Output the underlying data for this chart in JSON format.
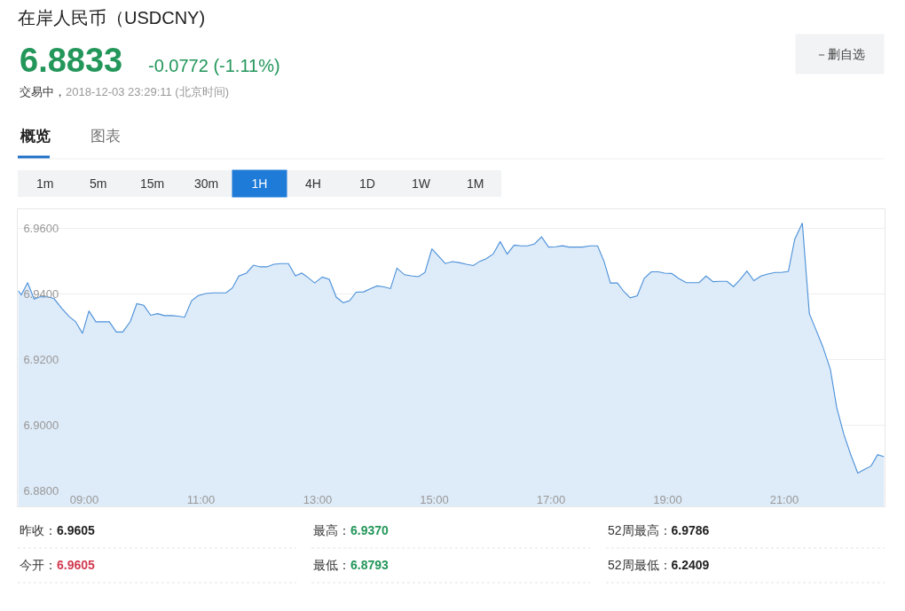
{
  "chart_data": {
    "type": "area",
    "title": "在岸人民币（USDCNY)",
    "annotations": [
      "6.8833",
      "-0.0772 (-1.11%)",
      "交易中，",
      "2018-12-03 23:29:11 (北京时间)",
      "－删自选",
      "概览",
      "图表",
      "1m",
      "5m",
      "15m",
      "30m",
      "1H",
      "4H",
      "1D",
      "1W",
      "1M",
      "昨收：",
      "6.9605",
      "今开：",
      "6.9605",
      "最高：",
      "6.9370",
      "最低：",
      "6.8793",
      "52周最高：",
      "6.9786",
      "52周最低：",
      "6.2409"
    ],
    "x": [
      7.87,
      7.92,
      8.03,
      8.14,
      8.24,
      8.37,
      8.48,
      8.62,
      8.74,
      8.85,
      8.97,
      9.08,
      9.2,
      9.3,
      9.43,
      9.55,
      9.66,
      9.79,
      9.9,
      10.02,
      10.14,
      10.26,
      10.37,
      10.5,
      10.61,
      10.72,
      10.84,
      10.95,
      11.08,
      11.21,
      11.43,
      11.54,
      11.65,
      11.78,
      11.9,
      12.02,
      12.13,
      12.25,
      12.37,
      12.5,
      12.62,
      12.73,
      12.84,
      12.95,
      13.08,
      13.2,
      13.32,
      13.44,
      13.55,
      13.66,
      13.79,
      13.9,
      14.02,
      14.14,
      14.25,
      14.36,
      14.49,
      14.6,
      14.73,
      14.84,
      14.96,
      15.07,
      15.19,
      15.31,
      15.43,
      15.55,
      15.67,
      15.78,
      15.89,
      16.01,
      16.13,
      16.25,
      16.37,
      16.49,
      16.6,
      16.72,
      16.84,
      16.96,
      17.08,
      17.2,
      17.31,
      17.43,
      17.54,
      17.67,
      17.8,
      17.91,
      18.02,
      18.14,
      18.25,
      18.36,
      18.48,
      18.6,
      18.72,
      18.84,
      18.95,
      19.07,
      19.19,
      19.32,
      19.43,
      19.54,
      19.66,
      19.78,
      19.9,
      20.02,
      20.13,
      20.24,
      20.36,
      20.48,
      20.6,
      20.72,
      20.84,
      20.95,
      21.07,
      21.18,
      21.31,
      21.43,
      21.55,
      21.66,
      21.79,
      21.9,
      22.02,
      22.14,
      22.26,
      22.37,
      22.49,
      22.6,
      22.71
    ],
    "values": [
      6.9409,
      6.9397,
      6.9434,
      6.9384,
      6.9391,
      6.9391,
      6.9386,
      6.9355,
      6.9331,
      6.9316,
      6.928,
      6.9348,
      6.9315,
      6.9315,
      6.9315,
      6.9284,
      6.9284,
      6.9316,
      6.937,
      6.9365,
      6.9335,
      6.934,
      6.9334,
      6.9334,
      6.9332,
      6.9329,
      6.9379,
      6.9394,
      6.9401,
      6.9403,
      6.9403,
      6.9418,
      6.9454,
      6.9463,
      6.9487,
      6.9482,
      6.9482,
      6.949,
      6.9492,
      6.9492,
      6.9455,
      6.9463,
      6.9449,
      6.9433,
      6.9451,
      6.9444,
      6.939,
      6.9373,
      6.9379,
      6.9405,
      6.9406,
      6.9415,
      6.9424,
      6.9421,
      6.9416,
      6.9478,
      6.9458,
      6.9455,
      6.9452,
      6.9465,
      6.9537,
      6.9515,
      6.9492,
      6.9498,
      6.9495,
      6.949,
      6.9486,
      6.9499,
      6.9507,
      6.9521,
      6.9559,
      6.9521,
      6.9548,
      6.9546,
      6.9546,
      6.9552,
      6.9573,
      6.9542,
      6.9543,
      6.9546,
      6.9542,
      6.9542,
      6.9542,
      6.9546,
      6.9546,
      6.9499,
      6.9433,
      6.9433,
      6.9407,
      6.9388,
      6.9394,
      6.9447,
      6.9467,
      6.9467,
      6.9463,
      6.9462,
      6.9447,
      6.9434,
      6.9434,
      6.9434,
      6.9454,
      6.9437,
      6.9438,
      6.9438,
      6.9422,
      6.9443,
      6.9469,
      6.944,
      6.9454,
      6.946,
      6.9465,
      6.9465,
      6.9468,
      6.9566,
      6.9615,
      6.934,
      6.9288,
      6.924,
      6.9171,
      6.9054,
      6.8974,
      6.8911,
      6.8855,
      6.8866,
      6.8877,
      6.8911,
      6.8905
    ],
    "color": "#4a90d9",
    "xlim": [
      7.86,
      22.72
    ],
    "xticks": [
      {
        "value": 9,
        "label": "09:00"
      },
      {
        "value": 11,
        "label": "11:00"
      },
      {
        "value": 13,
        "label": "13:00"
      },
      {
        "value": 15,
        "label": "15:00"
      },
      {
        "value": 17,
        "label": "17:00"
      },
      {
        "value": 19,
        "label": "19:00"
      },
      {
        "value": 21,
        "label": "21:00"
      }
    ],
    "ylim": [
      6.8754,
      6.9657
    ],
    "yticks": [
      {
        "value": 6.88,
        "label": "6.8800"
      },
      {
        "value": 6.9,
        "label": "6.9000"
      },
      {
        "value": 6.92,
        "label": "6.9200"
      },
      {
        "value": 6.94,
        "label": "6.9400"
      },
      {
        "value": 6.96,
        "label": "6.9600"
      }
    ],
    "grid": "y"
  }
}
